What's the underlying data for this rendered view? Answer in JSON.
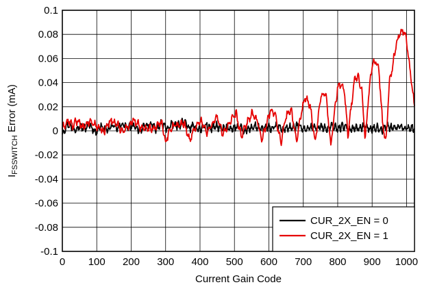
{
  "chart_data": {
    "type": "line",
    "title": "",
    "xlabel": "Current Gain Code",
    "ylabel": {
      "main": "I",
      "subscript": "FSSWITCH",
      "rest": " Error (mA)"
    },
    "xlim": [
      0,
      1023
    ],
    "ylim": [
      -0.1,
      0.1
    ],
    "xticks": [
      0,
      100,
      200,
      300,
      400,
      500,
      600,
      700,
      800,
      900,
      1000
    ],
    "yticks": [
      -0.1,
      -0.08,
      -0.06,
      -0.04,
      -0.02,
      0,
      0.02,
      0.04,
      0.06,
      0.08,
      0.1
    ],
    "xtick_labels": [
      "0",
      "100",
      "200",
      "300",
      "400",
      "500",
      "600",
      "700",
      "800",
      "900",
      "1000"
    ],
    "ytick_labels": [
      "-0.1",
      "-0.08",
      "-0.06",
      "-0.04",
      "-0.02",
      "0",
      "0.02",
      "0.04",
      "0.06",
      "0.08",
      "0.1"
    ],
    "grid": true,
    "legend_position": "bottom-right",
    "series": [
      {
        "name": "CUR_2X_EN = 0",
        "color": "#000000",
        "x": [
          0,
          16,
          32,
          48,
          64,
          80,
          96,
          112,
          128,
          144,
          160,
          176,
          192,
          208,
          224,
          240,
          256,
          272,
          288,
          304,
          320,
          336,
          352,
          368,
          384,
          400,
          416,
          432,
          448,
          464,
          480,
          496,
          512,
          528,
          544,
          560,
          576,
          592,
          608,
          624,
          640,
          656,
          672,
          688,
          704,
          720,
          736,
          752,
          768,
          784,
          800,
          816,
          832,
          848,
          864,
          880,
          896,
          912,
          928,
          944,
          960,
          976,
          992,
          1008,
          1023
        ],
        "y": [
          -0.002,
          0.006,
          0.001,
          0.004,
          0.002,
          0.005,
          -0.001,
          0.004,
          0.001,
          0.004,
          0.002,
          0.006,
          0.002,
          0.004,
          0.001,
          0.003,
          0.006,
          0.001,
          0.006,
          0.002,
          0.005,
          0.004,
          0.008,
          0.002,
          0.004,
          0.001,
          0.005,
          0.002,
          0.004,
          0.001,
          0.003,
          0.002,
          0.004,
          -0.001,
          0.002,
          0.004,
          0.001,
          0.003,
          0.002,
          0.004,
          0.001,
          0.003,
          0.002,
          0.005,
          0.001,
          0.003,
          0.002,
          0.004,
          0.001,
          0.004,
          0.002,
          0.004,
          0.001,
          0.003,
          0.002,
          0.004,
          0.001,
          0.003,
          0.001,
          0.004,
          0.002,
          0.004,
          0.002,
          0.003,
          0.001
        ],
        "noise_amp": 0.004
      },
      {
        "name": "CUR_2X_EN = 1",
        "color": "#e60000",
        "x": [
          0,
          10,
          20,
          30,
          45,
          60,
          80,
          100,
          120,
          140,
          160,
          175,
          190,
          205,
          220,
          232,
          245,
          260,
          275,
          290,
          300,
          310,
          320,
          340,
          355,
          370,
          385,
          395,
          405,
          420,
          435,
          450,
          465,
          480,
          495,
          505,
          520,
          535,
          550,
          565,
          580,
          595,
          605,
          620,
          635,
          650,
          665,
          680,
          695,
          705,
          720,
          735,
          750,
          765,
          780,
          790,
          800,
          810,
          820,
          830,
          840,
          850,
          860,
          870,
          880,
          890,
          900,
          910,
          920,
          930,
          940,
          950,
          960,
          970,
          980,
          990,
          1000,
          1010,
          1023
        ],
        "y": [
          0.002,
          0.006,
          0.008,
          0.004,
          0.009,
          0.002,
          0.008,
          0.004,
          -0.001,
          0.009,
          0.005,
          0.0,
          0.003,
          0.009,
          0.006,
          0.001,
          0.003,
          0.002,
          0.004,
          0.007,
          -0.01,
          0.0,
          0.004,
          0.005,
          0.006,
          -0.008,
          0.002,
          0.007,
          0.008,
          -0.002,
          0.006,
          0.012,
          -0.003,
          0.004,
          0.01,
          0.014,
          -0.005,
          0.006,
          0.014,
          0.009,
          -0.007,
          0.007,
          0.018,
          0.012,
          -0.01,
          0.012,
          0.018,
          -0.009,
          0.016,
          0.028,
          0.02,
          -0.01,
          0.028,
          0.032,
          -0.012,
          0.014,
          0.036,
          0.04,
          0.032,
          -0.005,
          0.022,
          0.044,
          0.044,
          0.035,
          -0.008,
          0.03,
          0.055,
          0.058,
          0.05,
          0.007,
          -0.01,
          0.04,
          0.055,
          0.072,
          0.08,
          0.083,
          0.076,
          0.05,
          0.02
        ],
        "noise_amp": 0.004
      }
    ]
  }
}
